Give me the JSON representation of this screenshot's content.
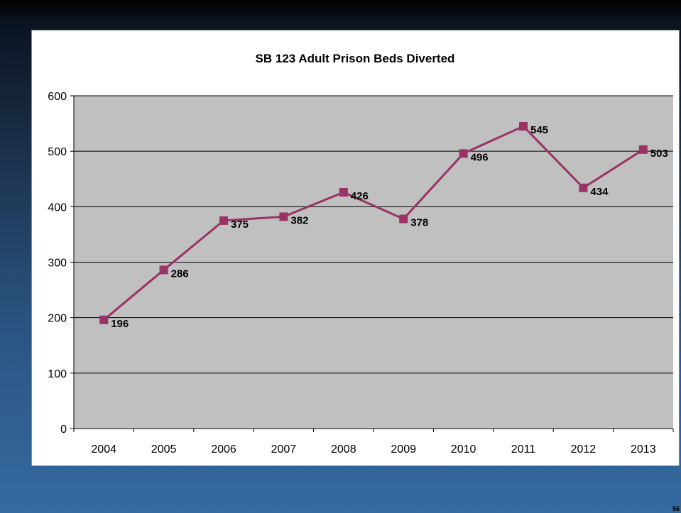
{
  "slide": {
    "page_number": "56"
  },
  "chart_data": {
    "type": "line",
    "title": "SB 123 Adult Prison Beds Diverted",
    "categories": [
      "2004",
      "2005",
      "2006",
      "2007",
      "2008",
      "2009",
      "2010",
      "2011",
      "2012",
      "2013"
    ],
    "series": [
      {
        "values": [
          196,
          286,
          375,
          382,
          426,
          378,
          496,
          545,
          434,
          503
        ],
        "color": "#993366"
      }
    ],
    "ylim": [
      0,
      600
    ],
    "yticks": [
      0,
      100,
      200,
      300,
      400,
      500,
      600
    ],
    "grid": true,
    "legend": "none",
    "plot_background": "#c0c0c0"
  }
}
